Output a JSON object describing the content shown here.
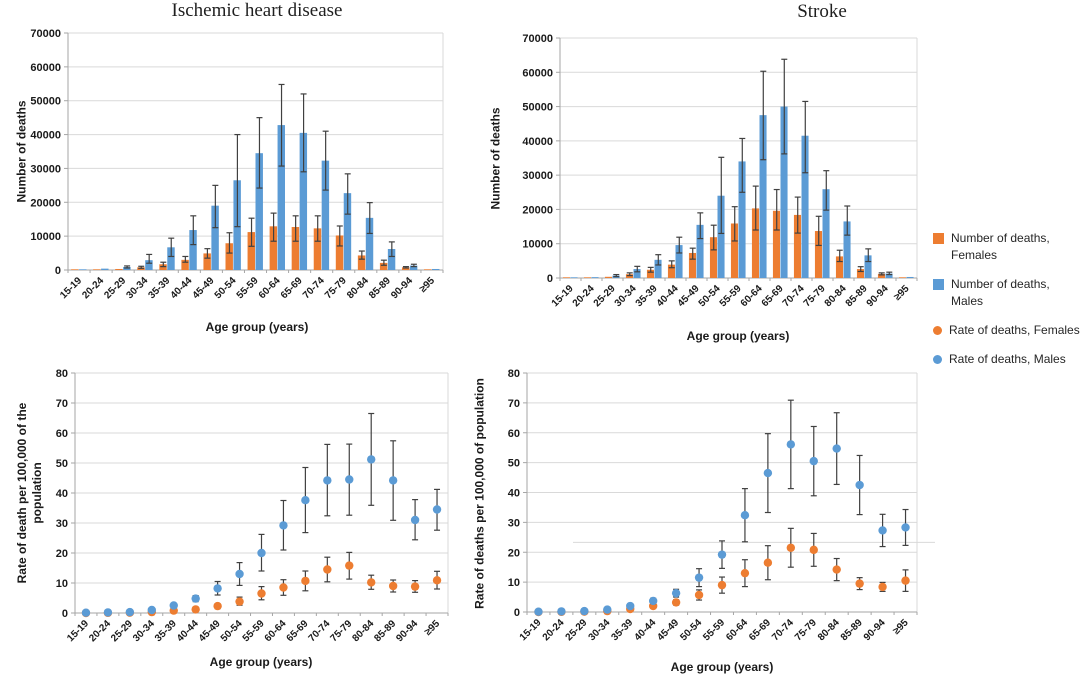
{
  "legend": {
    "position": "right",
    "items": [
      {
        "label": "Number of deaths, Females",
        "marker": "square",
        "color": "#ED7D31"
      },
      {
        "label": "Number of deaths, Males",
        "marker": "square",
        "color": "#5B9BD5"
      },
      {
        "label": "Rate of deaths, Females",
        "marker": "circle",
        "color": "#ED7D31"
      },
      {
        "label": "Rate of deaths, Males",
        "marker": "circle",
        "color": "#5B9BD5"
      }
    ]
  },
  "colors": {
    "females": "#ED7D31",
    "males": "#5B9BD5",
    "error_bar": "#404040",
    "gridline": "#D9D9D9",
    "axis": "#A6A6A6"
  },
  "chart_data": [
    {
      "type": "bar",
      "title": "Ischemic heart disease",
      "xlabel": "Age group (years)",
      "ylabel": "Number of deaths",
      "ylim": [
        0,
        70000
      ],
      "ytick_step": 10000,
      "grid": true,
      "categories": [
        "15-19",
        "20-24",
        "25-29",
        "30-34",
        "35-39",
        "40-44",
        "45-49",
        "50-54",
        "55-59",
        "60-64",
        "65-69",
        "70-74",
        "75-79",
        "80-84",
        "85-89",
        "90-94",
        "≥95"
      ],
      "series": [
        {
          "name": "Number of deaths, Females",
          "color": "#ED7D31",
          "values": [
            50,
            150,
            300,
            800,
            1700,
            3000,
            4900,
            7900,
            11200,
            12900,
            12700,
            12300,
            10200,
            4300,
            2100,
            800,
            200
          ],
          "err_lo": [
            null,
            null,
            null,
            500,
            1000,
            2300,
            3500,
            5000,
            7000,
            8500,
            8500,
            8500,
            7100,
            3200,
            1400,
            600,
            null
          ],
          "err_hi": [
            null,
            null,
            null,
            1100,
            2300,
            4000,
            6300,
            11000,
            15300,
            16800,
            16000,
            16000,
            13000,
            5600,
            2900,
            1000,
            null
          ]
        },
        {
          "name": "Number of deaths, Males",
          "color": "#5B9BD5",
          "values": [
            200,
            400,
            900,
            2900,
            6700,
            11800,
            19000,
            26500,
            34500,
            42800,
            40500,
            32300,
            22700,
            15400,
            6200,
            1300,
            300
          ],
          "err_lo": [
            null,
            null,
            600,
            2000,
            4000,
            7500,
            12500,
            12800,
            24200,
            30700,
            29000,
            23600,
            16500,
            10800,
            4000,
            1000,
            null
          ],
          "err_hi": [
            null,
            null,
            1200,
            4600,
            9400,
            16000,
            25000,
            40000,
            45000,
            54800,
            52000,
            41000,
            28400,
            19900,
            8300,
            1700,
            null
          ]
        }
      ]
    },
    {
      "type": "bar",
      "title": "Stroke",
      "xlabel": "Age group (years)",
      "ylabel": "Number of deaths",
      "ylim": [
        0,
        70000
      ],
      "ytick_step": 10000,
      "grid": true,
      "categories": [
        "15-19",
        "20-24",
        "25-29",
        "30-34",
        "35-39",
        "40-44",
        "45-49",
        "50-54",
        "55-59",
        "60-64",
        "65-69",
        "70-74",
        "75-79",
        "80-84",
        "85-89",
        "90-94",
        "≥95"
      ],
      "series": [
        {
          "name": "Number of deaths, Females",
          "color": "#ED7D31",
          "values": [
            50,
            100,
            350,
            1100,
            2400,
            3900,
            7300,
            11900,
            15900,
            20300,
            19600,
            18400,
            13700,
            6300,
            2600,
            1200,
            200
          ],
          "err_lo": [
            null,
            null,
            null,
            700,
            1700,
            3000,
            5500,
            8200,
            10800,
            14000,
            14000,
            13100,
            9500,
            4800,
            1900,
            900,
            null
          ],
          "err_hi": [
            null,
            null,
            null,
            1500,
            3100,
            5000,
            8700,
            15400,
            20800,
            26800,
            25800,
            23600,
            18000,
            8100,
            3300,
            1500,
            null
          ]
        },
        {
          "name": "Number of deaths, Males",
          "color": "#5B9BD5",
          "values": [
            100,
            250,
            700,
            2600,
            5300,
            9600,
            15500,
            24000,
            34000,
            47500,
            50000,
            41500,
            25900,
            16500,
            6600,
            1300,
            300
          ],
          "err_lo": [
            null,
            null,
            400,
            1800,
            3800,
            7300,
            11500,
            13000,
            25000,
            34500,
            36200,
            30700,
            19800,
            12500,
            4800,
            1000,
            null
          ],
          "err_hi": [
            null,
            null,
            1000,
            3400,
            6800,
            11900,
            19000,
            35200,
            40700,
            60300,
            63800,
            51500,
            31300,
            21000,
            8500,
            1700,
            null
          ]
        }
      ]
    },
    {
      "type": "scatter",
      "title": "",
      "xlabel": "Age group (years)",
      "ylabel": "Rate of death per 100,000 of the\npopulation",
      "ylim": [
        0,
        80
      ],
      "ytick_step": 10,
      "grid": true,
      "categories": [
        "15-19",
        "20-24",
        "25-29",
        "30-34",
        "35-39",
        "40-44",
        "45-49",
        "50-54",
        "55-59",
        "60-64",
        "65-69",
        "70-74",
        "75-79",
        "80-84",
        "85-89",
        "90-94",
        "≥95"
      ],
      "series": [
        {
          "name": "Rate of deaths, Females",
          "color": "#ED7D31",
          "values": [
            0,
            0.05,
            0.1,
            0.3,
            0.8,
            1.2,
            2.3,
            3.8,
            6.5,
            8.5,
            10.7,
            14.5,
            15.8,
            10.2,
            9.0,
            8.8,
            10.9
          ],
          "err_lo": [
            null,
            null,
            null,
            null,
            0.5,
            0.8,
            1.6,
            2.6,
            4.4,
            5.9,
            7.4,
            10.4,
            11.3,
            7.9,
            7.0,
            6.9,
            8.0
          ],
          "err_hi": [
            null,
            null,
            null,
            null,
            1.1,
            1.6,
            3.0,
            5.3,
            8.8,
            11.1,
            14.0,
            18.6,
            20.2,
            12.6,
            11.0,
            10.8,
            13.9
          ]
        },
        {
          "name": "Rate of deaths, Males",
          "color": "#5B9BD5",
          "values": [
            0.1,
            0.2,
            0.3,
            1.0,
            2.5,
            4.8,
            8.2,
            13.0,
            20.0,
            29.2,
            37.6,
            44.2,
            44.5,
            51.2,
            44.2,
            31.0,
            34.5
          ],
          "err_lo": [
            null,
            null,
            null,
            0.7,
            1.9,
            3.8,
            6.0,
            9.2,
            14.0,
            21.0,
            26.8,
            32.4,
            32.6,
            35.9,
            30.9,
            24.4,
            27.6
          ],
          "err_hi": [
            null,
            null,
            null,
            1.3,
            3.1,
            5.8,
            10.5,
            16.8,
            26.2,
            37.5,
            48.5,
            56.2,
            56.3,
            66.5,
            57.4,
            37.8,
            41.2
          ]
        }
      ]
    },
    {
      "type": "scatter",
      "title": "",
      "xlabel": "Age group (years)",
      "ylabel": "Rate of deaths per 100,000 of population",
      "ylim": [
        0,
        80
      ],
      "ytick_step": 10,
      "grid": true,
      "stray_gridline_y": 23.3,
      "categories": [
        "15-19",
        "20-24",
        "25-29",
        "30-34",
        "35-39",
        "40-44",
        "45-49",
        "50-54",
        "55-59",
        "60-64",
        "65-69",
        "70-74",
        "75-79",
        "80-84",
        "85-89",
        "90-94",
        "≥95"
      ],
      "series": [
        {
          "name": "Rate of deaths, Females",
          "color": "#ED7D31",
          "values": [
            0,
            0.05,
            0.1,
            0.3,
            1.0,
            2.0,
            3.2,
            5.7,
            9.0,
            13.0,
            16.5,
            21.5,
            20.8,
            14.2,
            9.5,
            8.4,
            10.5
          ],
          "err_lo": [
            null,
            null,
            null,
            null,
            0.7,
            1.4,
            2.3,
            4.0,
            6.3,
            8.5,
            10.8,
            15.0,
            15.3,
            10.5,
            7.5,
            6.9,
            6.9
          ],
          "err_hi": [
            null,
            null,
            null,
            null,
            1.3,
            2.6,
            4.1,
            7.4,
            11.7,
            17.5,
            22.2,
            28.0,
            26.3,
            17.9,
            11.5,
            9.9,
            14.1
          ]
        },
        {
          "name": "Rate of deaths, Males",
          "color": "#5B9BD5",
          "values": [
            0.1,
            0.2,
            0.3,
            0.8,
            2.0,
            3.7,
            6.3,
            11.5,
            19.2,
            32.4,
            46.5,
            56.1,
            50.5,
            54.7,
            42.5,
            27.3,
            28.3
          ],
          "err_lo": [
            null,
            null,
            null,
            0.5,
            1.5,
            2.8,
            5.0,
            8.5,
            14.6,
            23.5,
            33.3,
            41.3,
            38.9,
            42.7,
            32.6,
            21.9,
            22.3
          ],
          "err_hi": [
            null,
            null,
            null,
            1.1,
            2.5,
            4.6,
            7.6,
            14.5,
            23.8,
            41.3,
            59.7,
            70.9,
            62.1,
            66.7,
            52.4,
            32.7,
            34.3
          ]
        }
      ]
    }
  ]
}
